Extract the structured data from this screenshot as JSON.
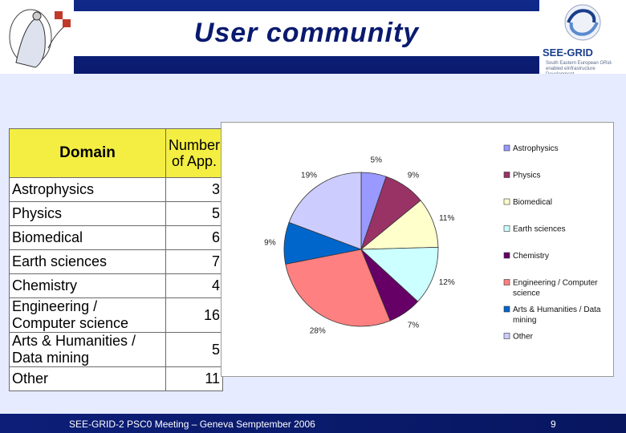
{
  "header": {
    "title": "User community",
    "logo_right_text": "SEE-GRID",
    "logo_right_sub": "South Eastern European GRid-enabled eInfrastructure Development"
  },
  "table": {
    "headers": [
      "Domain",
      "Number of App."
    ],
    "rows": [
      {
        "domain": "Astrophysics",
        "count": "3"
      },
      {
        "domain": "Physics",
        "count": "5"
      },
      {
        "domain": "Biomedical",
        "count": "6"
      },
      {
        "domain": "Earth sciences",
        "count": "7"
      },
      {
        "domain": "Chemistry",
        "count": "4"
      },
      {
        "domain": "Engineering / Computer science",
        "count": "16"
      },
      {
        "domain": "Arts & Humanities / Data mining",
        "count": "5"
      },
      {
        "domain": "Other",
        "count": "11"
      }
    ]
  },
  "chart_data": {
    "type": "pie",
    "categories": [
      "Astrophysics",
      "Physics",
      "Biomedical",
      "Earth sciences",
      "Chemistry",
      "Engineering / Computer science",
      "Arts & Humanities / Data mining",
      "Other"
    ],
    "values": [
      3,
      5,
      6,
      7,
      4,
      16,
      5,
      11
    ],
    "labels": [
      "5%",
      "9%",
      "11%",
      "12%",
      "7%",
      "28%",
      "9%",
      "19%"
    ],
    "colors": [
      "#9999ff",
      "#993366",
      "#ffffcc",
      "#ccffff",
      "#660066",
      "#ff8080",
      "#0066cc",
      "#ccccff"
    ],
    "legend_placement": "right"
  },
  "footer": {
    "text": "SEE-GRID-2 PSC0 Meeting – Geneva Semptember 2006",
    "page": "9"
  }
}
